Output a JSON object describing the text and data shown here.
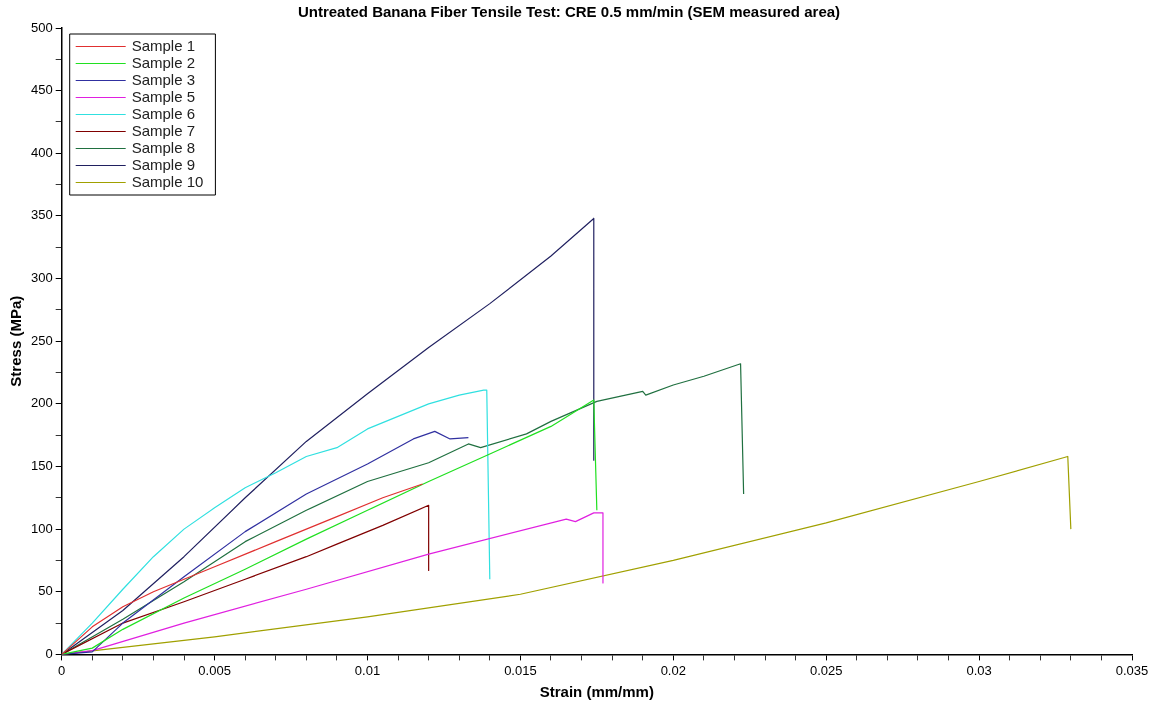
{
  "chart_data": {
    "type": "line",
    "title": "Untreated Banana Fiber Tensile Test: CRE 0.5 mm/min (SEM measured area)",
    "xlabel": "Strain (mm/mm)",
    "ylabel": "Stress (MPa)",
    "xlim": [
      0,
      0.035
    ],
    "ylim": [
      0,
      500
    ],
    "xticks": [
      0,
      {
        "value": 0.001,
        "label": null
      },
      {
        "value": 0.002,
        "label": null
      },
      {
        "value": 0.003,
        "label": null
      },
      {
        "value": 0.004,
        "label": null
      },
      0.005,
      {
        "value": 0.006,
        "label": null
      },
      {
        "value": 0.007,
        "label": null
      },
      {
        "value": 0.008,
        "label": null
      },
      {
        "value": 0.009,
        "label": null
      },
      0.01,
      {
        "value": 0.011,
        "label": null
      },
      {
        "value": 0.012,
        "label": null
      },
      {
        "value": 0.013,
        "label": null
      },
      {
        "value": 0.014,
        "label": null
      },
      0.015,
      {
        "value": 0.016,
        "label": null
      },
      {
        "value": 0.017,
        "label": null
      },
      {
        "value": 0.018,
        "label": null
      },
      {
        "value": 0.019,
        "label": null
      },
      0.02,
      {
        "value": 0.021,
        "label": null
      },
      {
        "value": 0.022,
        "label": null
      },
      {
        "value": 0.023,
        "label": null
      },
      {
        "value": 0.024,
        "label": null
      },
      0.025,
      {
        "value": 0.026,
        "label": null
      },
      {
        "value": 0.027,
        "label": null
      },
      {
        "value": 0.028,
        "label": null
      },
      {
        "value": 0.029,
        "label": null
      },
      0.03,
      {
        "value": 0.031,
        "label": null
      },
      {
        "value": 0.032,
        "label": null
      },
      {
        "value": 0.033,
        "label": null
      },
      {
        "value": 0.034,
        "label": null
      },
      0.035
    ],
    "yticks": [
      0,
      {
        "value": 25,
        "label": null
      },
      50,
      {
        "value": 75,
        "label": null
      },
      100,
      {
        "value": 125,
        "label": null
      },
      150,
      {
        "value": 175,
        "label": null
      },
      200,
      {
        "value": 225,
        "label": null
      },
      250,
      {
        "value": 275,
        "label": null
      },
      300,
      {
        "value": 325,
        "label": null
      },
      350,
      {
        "value": 375,
        "label": null
      },
      400,
      {
        "value": 425,
        "label": null
      },
      450,
      {
        "value": 475,
        "label": null
      },
      500
    ],
    "grid": false,
    "legend": "top left",
    "marker": "none",
    "line_style": "solid",
    "series": [
      {
        "name": "Sample 1",
        "color": "#e03030",
        "x": [
          0,
          0.001,
          0.002,
          0.003,
          0.005,
          0.007,
          0.009,
          0.0105,
          0.0118
        ],
        "values": [
          0,
          22,
          38,
          50,
          70,
          90,
          110,
          125,
          136
        ]
      },
      {
        "name": "Sample 2",
        "color": "#20e020",
        "x": [
          0,
          0.001,
          0.002,
          0.004,
          0.006,
          0.008,
          0.01,
          0.012,
          0.014,
          0.016,
          0.0174,
          0.0175
        ],
        "values": [
          0,
          5,
          20,
          45,
          68,
          92,
          115,
          138,
          160,
          182,
          203,
          115
        ]
      },
      {
        "name": "Sample 3",
        "color": "#3030a0",
        "x": [
          0,
          0.001,
          0.002,
          0.004,
          0.006,
          0.008,
          0.01,
          0.0115,
          0.0122,
          0.0127,
          0.0133
        ],
        "values": [
          0,
          2,
          25,
          62,
          98,
          128,
          152,
          172,
          178,
          172,
          173
        ]
      },
      {
        "name": "Sample 5",
        "color": "#e020e0",
        "x": [
          0,
          0.001,
          0.004,
          0.008,
          0.012,
          0.0165,
          0.0168,
          0.0174,
          0.0177,
          0.0177
        ],
        "values": [
          0,
          3,
          25,
          52,
          80,
          108,
          106,
          113,
          113,
          57
        ]
      },
      {
        "name": "Sample 6",
        "color": "#30e0e0",
        "x": [
          0,
          0.001,
          0.002,
          0.003,
          0.004,
          0.005,
          0.006,
          0.007,
          0.008,
          0.009,
          0.01,
          0.011,
          0.012,
          0.013,
          0.0138,
          0.0139,
          0.014
        ],
        "values": [
          0,
          25,
          52,
          78,
          100,
          117,
          133,
          145,
          158,
          165,
          180,
          190,
          200,
          207,
          211,
          211,
          60
        ]
      },
      {
        "name": "Sample 7",
        "color": "#800000",
        "x": [
          0,
          0.002,
          0.004,
          0.006,
          0.008,
          0.009,
          0.0105,
          0.012,
          0.012
        ],
        "values": [
          0,
          25,
          42,
          60,
          78,
          88,
          103,
          119,
          67
        ]
      },
      {
        "name": "Sample 8",
        "color": "#207040",
        "x": [
          0,
          0.002,
          0.004,
          0.006,
          0.008,
          0.01,
          0.012,
          0.0133,
          0.0137,
          0.0152,
          0.016,
          0.0175,
          0.019,
          0.0191,
          0.02,
          0.021,
          0.0222,
          0.0223
        ],
        "values": [
          0,
          28,
          58,
          90,
          115,
          138,
          153,
          168,
          165,
          176,
          186,
          202,
          210,
          207,
          215,
          222,
          232,
          128
        ]
      },
      {
        "name": "Sample 9",
        "color": "#202060",
        "x": [
          0,
          0.002,
          0.004,
          0.006,
          0.008,
          0.01,
          0.012,
          0.014,
          0.016,
          0.0174,
          0.0174
        ],
        "values": [
          0,
          35,
          78,
          125,
          170,
          208,
          245,
          280,
          318,
          348,
          155
        ]
      },
      {
        "name": "Sample 10",
        "color": "#a0a000",
        "x": [
          0,
          0.005,
          0.01,
          0.015,
          0.02,
          0.025,
          0.03,
          0.0329,
          0.033
        ],
        "values": [
          0,
          14,
          30,
          48,
          75,
          105,
          138,
          158,
          100
        ]
      }
    ]
  }
}
